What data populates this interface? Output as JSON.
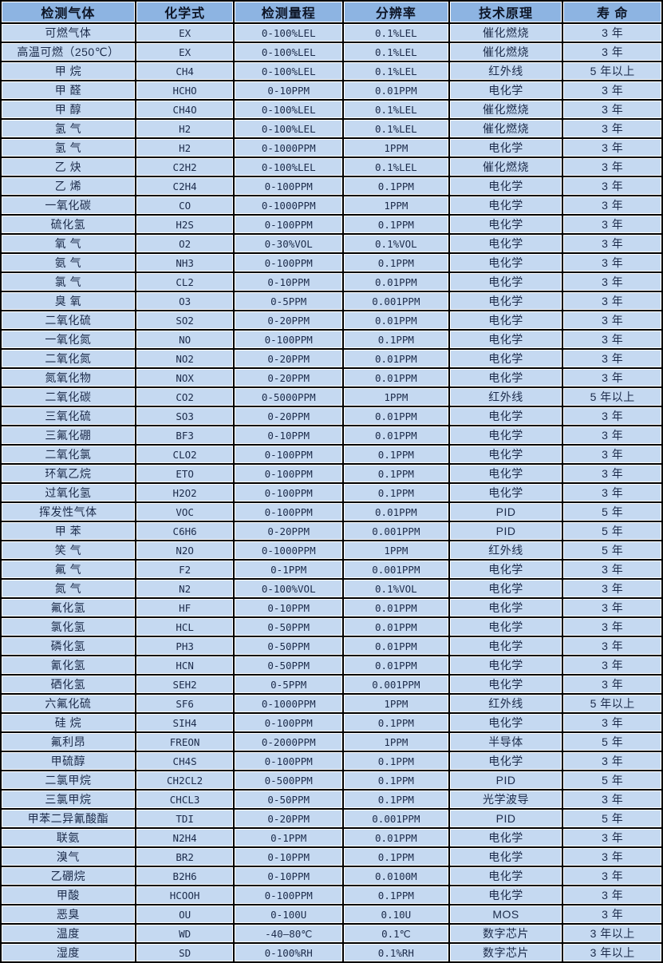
{
  "colors": {
    "header_bg": "#8db4e2",
    "row_bg": "#c5d9f1",
    "gridline": "#000000",
    "cell_edge": "#ffffff",
    "header_text": "#0d1526",
    "body_text": "#1c2b4a"
  },
  "table": {
    "columns": [
      "检测气体",
      "化学式",
      "检测量程",
      "分辨率",
      "技术原理",
      "寿 命"
    ],
    "rows": [
      [
        "可燃气体",
        "EX",
        "0-100%LEL",
        "0.1%LEL",
        "催化燃烧",
        "3 年"
      ],
      [
        "高温可燃（250℃）",
        "EX",
        "0-100%LEL",
        "0.1%LEL",
        "催化燃烧",
        "3 年"
      ],
      [
        "甲 烷",
        "CH4",
        "0-100%LEL",
        "0.1%LEL",
        "红外线",
        "5 年以上"
      ],
      [
        "甲 醛",
        "HCHO",
        "0-10PPM",
        "0.01PPM",
        "电化学",
        "3 年"
      ],
      [
        "甲 醇",
        "CH4O",
        "0-100%LEL",
        "0.1%LEL",
        "催化燃烧",
        "3 年"
      ],
      [
        "氢 气",
        "H2",
        "0-100%LEL",
        "0.1%LEL",
        "催化燃烧",
        "3 年"
      ],
      [
        "氢 气",
        "H2",
        "0-1000PPM",
        "1PPM",
        "电化学",
        "3 年"
      ],
      [
        "乙 炔",
        "C2H2",
        "0-100%LEL",
        "0.1%LEL",
        "催化燃烧",
        "3 年"
      ],
      [
        "乙 烯",
        "C2H4",
        "0-100PPM",
        "0.1PPM",
        "电化学",
        "3 年"
      ],
      [
        "一氧化碳",
        "CO",
        "0-1000PPM",
        "1PPM",
        "电化学",
        "3 年"
      ],
      [
        "硫化氢",
        "H2S",
        "0-100PPM",
        "0.1PPM",
        "电化学",
        "3 年"
      ],
      [
        "氧 气",
        "O2",
        "0-30%VOL",
        "0.1%VOL",
        "电化学",
        "3 年"
      ],
      [
        "氨 气",
        "NH3",
        "0-100PPM",
        "0.1PPM",
        "电化学",
        "3 年"
      ],
      [
        "氯 气",
        "CL2",
        "0-10PPM",
        "0.01PPM",
        "电化学",
        "3 年"
      ],
      [
        "臭 氧",
        "O3",
        "0-5PPM",
        "0.001PPM",
        "电化学",
        "3 年"
      ],
      [
        "二氧化硫",
        "SO2",
        "0-20PPM",
        "0.01PPM",
        "电化学",
        "3 年"
      ],
      [
        "一氧化氮",
        "NO",
        "0-100PPM",
        "0.1PPM",
        "电化学",
        "3 年"
      ],
      [
        "二氧化氮",
        "NO2",
        "0-20PPM",
        "0.01PPM",
        "电化学",
        "3 年"
      ],
      [
        "氮氧化物",
        "NOX",
        "0-20PPM",
        "0.01PPM",
        "电化学",
        "3 年"
      ],
      [
        "二氧化碳",
        "CO2",
        "0-5000PPM",
        "1PPM",
        "红外线",
        "5 年以上"
      ],
      [
        "三氧化硫",
        "SO3",
        "0-20PPM",
        "0.01PPM",
        "电化学",
        "3 年"
      ],
      [
        "三氟化硼",
        "BF3",
        "0-10PPM",
        "0.01PPM",
        "电化学",
        "3 年"
      ],
      [
        "二氧化氯",
        "CLO2",
        "0-100PPM",
        "0.1PPM",
        "电化学",
        "3 年"
      ],
      [
        "环氧乙烷",
        "ETO",
        "0-100PPM",
        "0.1PPM",
        "电化学",
        "3 年"
      ],
      [
        "过氧化氢",
        "H2O2",
        "0-100PPM",
        "0.1PPM",
        "电化学",
        "3 年"
      ],
      [
        "挥发性气体",
        "VOC",
        "0-100PPM",
        "0.01PPM",
        "PID",
        "5 年"
      ],
      [
        "甲 苯",
        "C6H6",
        "0-20PPM",
        "0.001PPM",
        "PID",
        "5 年"
      ],
      [
        "笑 气",
        "N2O",
        "0-1000PPM",
        "1PPM",
        "红外线",
        "5 年"
      ],
      [
        "氟 气",
        "F2",
        "0-1PPM",
        "0.001PPM",
        "电化学",
        "3 年"
      ],
      [
        "氮 气",
        "N2",
        "0-100%VOL",
        "0.1%VOL",
        "电化学",
        "3 年"
      ],
      [
        "氟化氢",
        "HF",
        "0-10PPM",
        "0.01PPM",
        "电化学",
        "3 年"
      ],
      [
        "氯化氢",
        "HCL",
        "0-50PPM",
        "0.01PPM",
        "电化学",
        "3 年"
      ],
      [
        "磷化氢",
        "PH3",
        "0-50PPM",
        "0.01PPM",
        "电化学",
        "3 年"
      ],
      [
        "氰化氢",
        "HCN",
        "0-50PPM",
        "0.01PPM",
        "电化学",
        "3 年"
      ],
      [
        "硒化氢",
        "SEH2",
        "0-5PPM",
        "0.001PPM",
        "电化学",
        "3 年"
      ],
      [
        "六氟化硫",
        "SF6",
        "0-1000PPM",
        "1PPM",
        "红外线",
        "5 年以上"
      ],
      [
        "硅 烷",
        "SIH4",
        "0-100PPM",
        "0.1PPM",
        "电化学",
        "3 年"
      ],
      [
        "氟利昂",
        "FREON",
        "0-2000PPM",
        "1PPM",
        "半导体",
        "5 年"
      ],
      [
        "甲硫醇",
        "CH4S",
        "0-100PPM",
        "0.1PPM",
        "电化学",
        "3 年"
      ],
      [
        "二氯甲烷",
        "CH2CL2",
        "0-500PPM",
        "0.1PPM",
        "PID",
        "5 年"
      ],
      [
        "三氯甲烷",
        "CHCL3",
        "0-50PPM",
        "0.1PPM",
        "光学波导",
        "3 年"
      ],
      [
        "甲苯二异氰酸酯",
        "TDI",
        "0-20PPM",
        "0.001PPM",
        "PID",
        "5 年"
      ],
      [
        "联氨",
        "N2H4",
        "0-1PPM",
        "0.01PPM",
        "电化学",
        "3 年"
      ],
      [
        "溴气",
        "BR2",
        "0-10PPM",
        "0.1PPM",
        "电化学",
        "3 年"
      ],
      [
        "乙硼烷",
        "B2H6",
        "0-10PPM",
        "0.0100M",
        "电化学",
        "3 年"
      ],
      [
        "甲酸",
        "HCOOH",
        "0-100PPM",
        "0.1PPM",
        "电化学",
        "3 年"
      ],
      [
        "恶臭",
        "OU",
        "0-100U",
        "0.10U",
        "MOS",
        "3 年"
      ],
      [
        "温度",
        "WD",
        "-40—80℃",
        "0.1℃",
        "数字芯片",
        "3 年以上"
      ],
      [
        "湿度",
        "SD",
        "0-100%RH",
        "0.1%RH",
        "数字芯片",
        "3 年以上"
      ]
    ]
  }
}
